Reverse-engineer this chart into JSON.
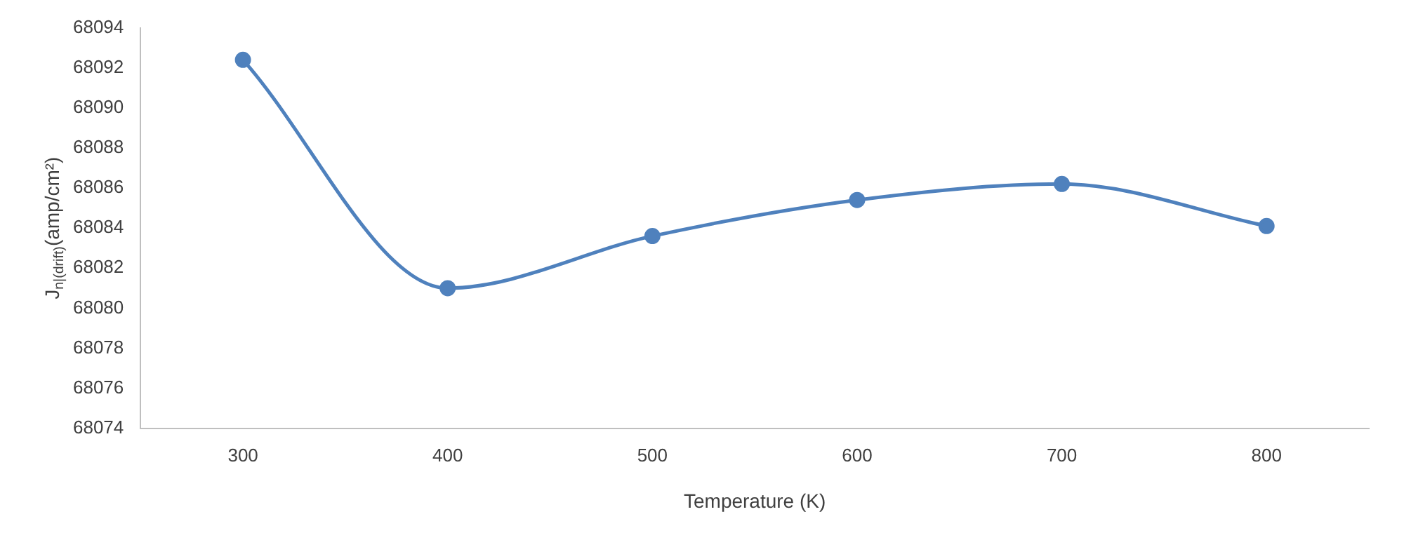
{
  "chart_data": {
    "type": "line",
    "xlabel": "Temperature (K)",
    "ylabel": "J$_{n|(drift)}$(amp/cm²)",
    "categories": [
      "300",
      "400",
      "500",
      "600",
      "700",
      "800"
    ],
    "series": [
      {
        "color": "#4f81bd",
        "values": [
          68092.4,
          68081.0,
          68083.6,
          68085.4,
          68086.2,
          68084.1
        ]
      }
    ],
    "ylim": [
      68074,
      68094
    ],
    "yticks": [
      68074,
      68076,
      68078,
      68080,
      68082,
      68084,
      68086,
      68088,
      68090,
      68092,
      68094
    ],
    "grid": false,
    "legend": false,
    "marker": "circle",
    "line_style": "solid"
  }
}
